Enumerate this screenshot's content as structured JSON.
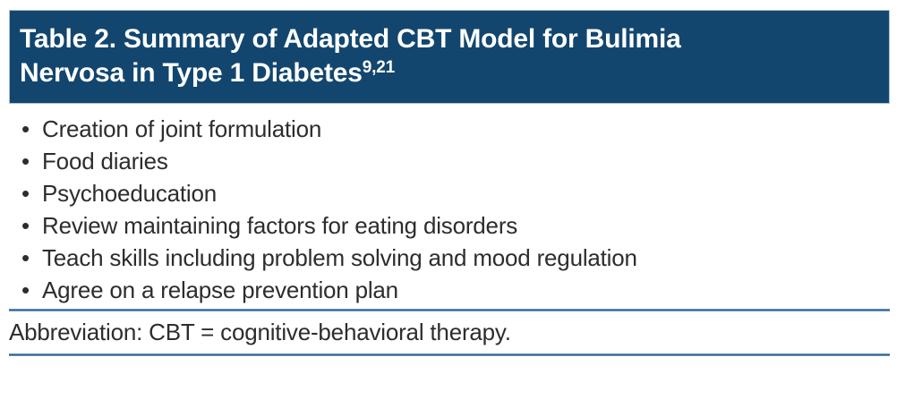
{
  "header": {
    "title_line1": "Table 2. Summary of Adapted CBT Model for Bulimia",
    "title_line2": "Nervosa in Type 1 Diabetes",
    "title_superscript": "9,21"
  },
  "list": {
    "items": [
      "Creation of joint formulation",
      "Food diaries",
      "Psychoeducation",
      "Review maintaining factors for eating disorders",
      "Teach skills including problem solving and mood regulation",
      "Agree on a relapse prevention plan"
    ]
  },
  "footnote": "Abbreviation: CBT = cognitive-behavioral therapy.",
  "colors": {
    "header_background": "#12466E",
    "header_text": "#FFFFFF",
    "rule": "#2B6495",
    "body_text": "#2E2D2B"
  }
}
